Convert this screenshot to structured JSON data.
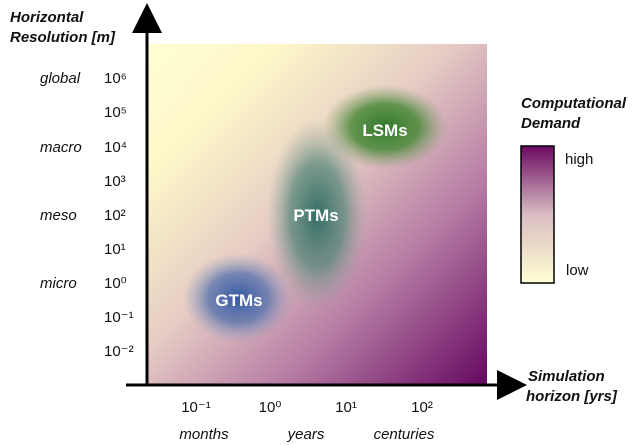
{
  "y_axis": {
    "title_line1": "Horizontal",
    "title_line2": "Resolution [m]",
    "scale_labels": [
      "global",
      "macro",
      "meso",
      "micro"
    ],
    "ticks": [
      "10⁶",
      "10⁵",
      "10⁴",
      "10³",
      "10²",
      "10¹",
      "10⁰",
      "10⁻¹",
      "10⁻²"
    ]
  },
  "x_axis": {
    "title_line1": "Simulation",
    "title_line2": "horizon [yrs]",
    "ticks": [
      "10⁻¹",
      "10⁰",
      "10¹",
      "10²"
    ],
    "scale_labels": [
      "months",
      "years",
      "centuries"
    ]
  },
  "models": {
    "lsm": "LSMs",
    "ptm": "PTMs",
    "gtm": "GTMs"
  },
  "legend": {
    "title_line1": "Computational",
    "title_line2": "Demand",
    "high": "high",
    "low": "low"
  },
  "colors": {
    "low": "#ffffd4",
    "mid": "#d9b8c0",
    "high": "#6b0a62",
    "lsm": "#3a7d2c",
    "ptm": "#2f6f63",
    "gtm": "#3a5fa3"
  }
}
